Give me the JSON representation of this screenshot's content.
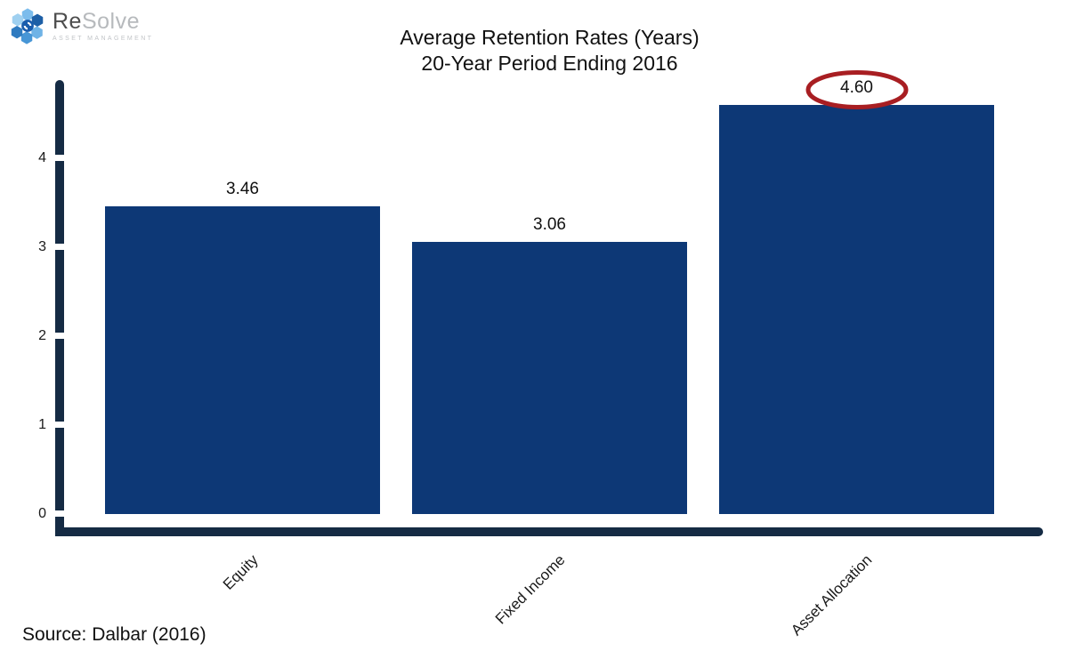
{
  "brand": {
    "name_re": "Re",
    "name_solve": "Solve",
    "tagline": "ASSET MANAGEMENT"
  },
  "chart_data": {
    "type": "bar",
    "title": "Average Retention Rates (Years)",
    "subtitle": "20-Year Period Ending 2016",
    "categories": [
      "Equity",
      "Fixed Income",
      "Asset Allocation"
    ],
    "values": [
      3.46,
      3.06,
      4.6
    ],
    "value_labels": [
      "3.46",
      "3.06",
      "4.60"
    ],
    "yticks": [
      0,
      1,
      2,
      3,
      4
    ],
    "ylim": [
      0,
      4.85
    ],
    "xlabel": "",
    "ylabel": "",
    "grid": false,
    "legend": false,
    "highlighted_category": "Asset Allocation",
    "highlight_shape": "red-ellipse",
    "colors": {
      "bar": "#0d3876",
      "axis": "#152b44",
      "highlight": "#a81e22",
      "text": "#1a1a1a"
    }
  },
  "source_note": "Source: Dalbar (2016)"
}
